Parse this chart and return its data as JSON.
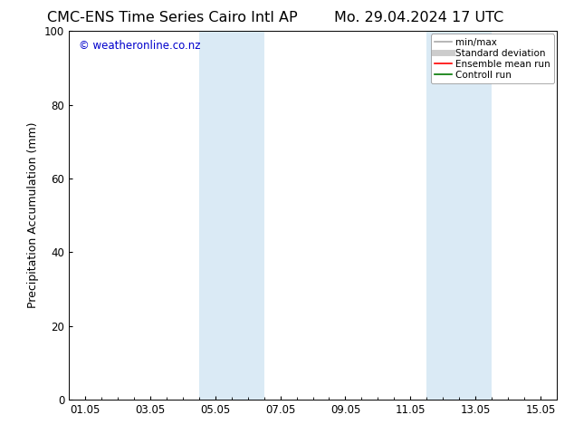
{
  "title_left": "CMC-ENS Time Series Cairo Intl AP",
  "title_right": "Mo. 29.04.2024 17 UTC",
  "ylabel": "Precipitation Accumulation (mm)",
  "watermark": "© weatheronline.co.nz",
  "watermark_color": "#0000cc",
  "ylim": [
    0,
    100
  ],
  "yticks": [
    0,
    20,
    40,
    60,
    80,
    100
  ],
  "xtick_labels": [
    "01.05",
    "03.05",
    "05.05",
    "07.05",
    "09.05",
    "11.05",
    "13.05",
    "15.05"
  ],
  "xmin": -0.5,
  "xmax": 14.5,
  "background_color": "#ffffff",
  "plot_bg_color": "#ffffff",
  "shaded_regions": [
    {
      "xmin": 3.5,
      "xmax": 5.5,
      "color": "#daeaf5"
    },
    {
      "xmin": 10.5,
      "xmax": 12.5,
      "color": "#daeaf5"
    }
  ],
  "legend_entries": [
    {
      "label": "min/max",
      "color": "#aaaaaa",
      "lw": 1.2,
      "style": "solid"
    },
    {
      "label": "Standard deviation",
      "color": "#cccccc",
      "lw": 5,
      "style": "solid"
    },
    {
      "label": "Ensemble mean run",
      "color": "#ff0000",
      "lw": 1.2,
      "style": "solid"
    },
    {
      "label": "Controll run",
      "color": "#007700",
      "lw": 1.2,
      "style": "solid"
    }
  ],
  "title_fontsize": 11.5,
  "label_fontsize": 9,
  "tick_fontsize": 8.5,
  "legend_fontsize": 7.5,
  "watermark_fontsize": 8.5
}
